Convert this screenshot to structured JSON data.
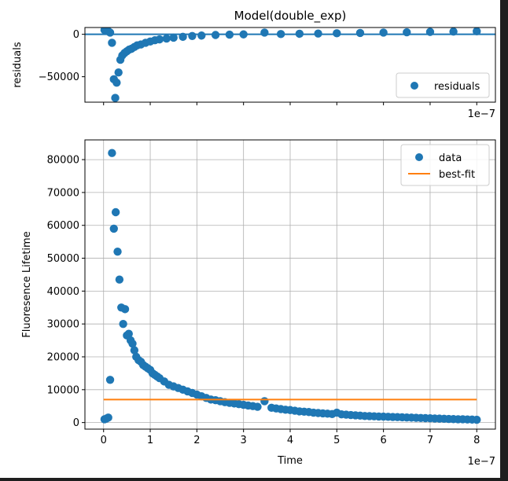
{
  "chart_data": [
    {
      "type": "scatter",
      "title": "Model(double_exp)",
      "xlabel": "",
      "ylabel": "residuals",
      "x_scale_label": "1e−7",
      "xlim": [
        -0.4,
        8.4
      ],
      "ylim": [
        -80000,
        8000
      ],
      "yticks": [
        0,
        -50000
      ],
      "ytick_labels": [
        "0",
        "−50000"
      ],
      "xticks": [
        0,
        1,
        2,
        3,
        4,
        5,
        6,
        7,
        8
      ],
      "grid": false,
      "legend_position": "lower-right",
      "zero_line": 0,
      "series": [
        {
          "name": "residuals",
          "marker": "circle",
          "color": "#1f77b4",
          "x": [
            0.02,
            0.06,
            0.1,
            0.14,
            0.18,
            0.22,
            0.25,
            0.28,
            0.32,
            0.36,
            0.4,
            0.45,
            0.5,
            0.55,
            0.6,
            0.66,
            0.72,
            0.8,
            0.9,
            1.0,
            1.1,
            1.2,
            1.35,
            1.5,
            1.7,
            1.9,
            2.1,
            2.4,
            2.7,
            3.0,
            3.45,
            3.8,
            4.2,
            4.6,
            5.0,
            5.5,
            6.0,
            6.5,
            7.0,
            7.5,
            8.0
          ],
          "y": [
            5000,
            4000,
            3500,
            2000,
            -10000,
            -53000,
            -75000,
            -57000,
            -45000,
            -30000,
            -25000,
            -22000,
            -20000,
            -18000,
            -17000,
            -15000,
            -13000,
            -12000,
            -10000,
            -8500,
            -7000,
            -6000,
            -5000,
            -4000,
            -3000,
            -2000,
            -1500,
            -800,
            -400,
            -100,
            2000,
            300,
            600,
            900,
            1200,
            1600,
            2000,
            2400,
            2800,
            3200,
            3500
          ]
        }
      ]
    },
    {
      "type": "scatter",
      "title": "",
      "xlabel": "Time",
      "ylabel": "Fluoresence Lifetime",
      "x_scale_label": "1e−7",
      "xlim": [
        -0.4,
        8.4
      ],
      "ylim": [
        -2000,
        86000
      ],
      "yticks": [
        0,
        10000,
        20000,
        30000,
        40000,
        50000,
        60000,
        70000,
        80000
      ],
      "ytick_labels": [
        "0",
        "10000",
        "20000",
        "30000",
        "40000",
        "50000",
        "60000",
        "70000",
        "80000"
      ],
      "xticks": [
        0,
        1,
        2,
        3,
        4,
        5,
        6,
        7,
        8
      ],
      "xtick_labels": [
        "0",
        "1",
        "2",
        "3",
        "4",
        "5",
        "6",
        "7",
        "8"
      ],
      "grid": true,
      "legend_position": "upper-right",
      "series": [
        {
          "name": "data",
          "marker": "circle",
          "color": "#1f77b4",
          "x": [
            0.02,
            0.06,
            0.1,
            0.14,
            0.18,
            0.22,
            0.26,
            0.3,
            0.34,
            0.38,
            0.42,
            0.46,
            0.5,
            0.54,
            0.58,
            0.62,
            0.66,
            0.7,
            0.75,
            0.8,
            0.85,
            0.9,
            0.95,
            1.0,
            1.05,
            1.1,
            1.15,
            1.2,
            1.3,
            1.4,
            1.5,
            1.6,
            1.7,
            1.8,
            1.9,
            2.0,
            2.1,
            2.2,
            2.3,
            2.4,
            2.5,
            2.6,
            2.7,
            2.8,
            2.9,
            3.0,
            3.1,
            3.2,
            3.3,
            3.45,
            3.6,
            3.7,
            3.8,
            3.9,
            4.0,
            4.1,
            4.2,
            4.3,
            4.4,
            4.5,
            4.6,
            4.7,
            4.8,
            4.9,
            5.0,
            5.1,
            5.2,
            5.3,
            5.4,
            5.5,
            5.6,
            5.7,
            5.8,
            5.9,
            6.0,
            6.1,
            6.2,
            6.3,
            6.4,
            6.5,
            6.6,
            6.7,
            6.8,
            6.9,
            7.0,
            7.1,
            7.2,
            7.3,
            7.4,
            7.5,
            7.6,
            7.7,
            7.8,
            7.9,
            8.0
          ],
          "y": [
            1000,
            1200,
            1500,
            13000,
            82000,
            59000,
            64000,
            52000,
            43500,
            35000,
            30000,
            34500,
            26500,
            27000,
            25000,
            24000,
            22000,
            20000,
            19000,
            18500,
            17500,
            17000,
            16500,
            16000,
            15000,
            14500,
            14000,
            13500,
            12500,
            11500,
            11000,
            10500,
            10000,
            9500,
            9000,
            8500,
            8000,
            7500,
            7000,
            6800,
            6500,
            6200,
            6000,
            5800,
            5600,
            5400,
            5200,
            5000,
            4800,
            6500,
            4500,
            4300,
            4100,
            3900,
            3800,
            3600,
            3400,
            3300,
            3200,
            3000,
            2900,
            2800,
            2700,
            2600,
            3000,
            2500,
            2400,
            2300,
            2200,
            2100,
            2000,
            1950,
            1900,
            1850,
            1800,
            1750,
            1700,
            1650,
            1600,
            1550,
            1500,
            1450,
            1400,
            1350,
            1300,
            1250,
            1200,
            1150,
            1100,
            1050,
            1000,
            1000,
            950,
            900,
            850
          ]
        },
        {
          "name": "best-fit",
          "marker": "line",
          "color": "#ff7f0e",
          "x": [
            0,
            8
          ],
          "y": [
            7000,
            7000
          ]
        }
      ]
    }
  ]
}
